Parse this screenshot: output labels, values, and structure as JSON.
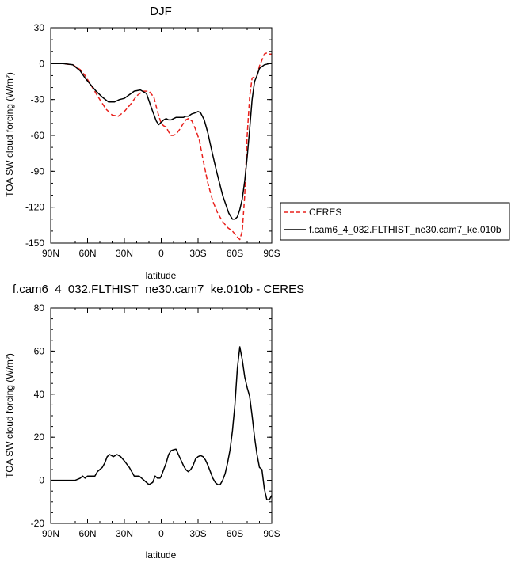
{
  "charts": [
    {
      "type": "line",
      "title": "DJF",
      "xlabel": "latitude",
      "ylabel": "TOA SW cloud forcing (W/m²)",
      "xlim": [
        -90,
        90
      ],
      "ylim": [
        -150,
        30
      ],
      "x_ticks": [
        -90,
        -60,
        -30,
        0,
        30,
        60,
        90
      ],
      "x_tick_labels": [
        "90N",
        "60N",
        "30N",
        "0",
        "30S",
        "60S",
        "90S"
      ],
      "y_ticks": [
        -150,
        -120,
        -90,
        -60,
        -30,
        0,
        30
      ],
      "y_tick_labels": [
        "-150",
        "-120",
        "-90",
        "-60",
        "-30",
        "0",
        "30"
      ],
      "legend": {
        "placement": "right",
        "entries": [
          {
            "label": "CERES",
            "color": "#e8201c",
            "dash": "dashed"
          },
          {
            "label": "f.cam6_4_032.FLTHIST_ne30.cam7_ke.010b",
            "color": "#000000",
            "dash": "solid"
          }
        ]
      },
      "series": [
        {
          "name": "CERES",
          "color": "#e8201c",
          "dash": "dashed",
          "x": [
            -90,
            -80,
            -72,
            -66,
            -62,
            -56,
            -50,
            -45,
            -40,
            -35,
            -30,
            -25,
            -20,
            -15,
            -10,
            -6,
            -3,
            -1,
            0,
            2,
            4,
            6,
            8,
            10,
            12,
            15,
            18,
            20,
            22,
            25,
            28,
            31,
            34,
            38,
            42,
            46,
            50,
            54,
            58,
            62,
            64,
            66,
            68,
            70,
            72,
            74,
            76,
            78,
            80,
            82,
            84,
            86,
            88,
            90
          ],
          "y": [
            0,
            0,
            -1,
            -5,
            -10,
            -20,
            -30,
            -38,
            -43,
            -44,
            -40,
            -34,
            -27,
            -23,
            -23,
            -28,
            -40,
            -47,
            -50,
            -52,
            -53,
            -57,
            -60,
            -60,
            -59,
            -55,
            -50,
            -47,
            -46,
            -48,
            -55,
            -64,
            -80,
            -100,
            -115,
            -125,
            -132,
            -137,
            -140,
            -145,
            -147,
            -140,
            -110,
            -60,
            -28,
            -12,
            -11,
            -10,
            -2,
            3,
            8,
            9,
            8,
            8
          ]
        },
        {
          "name": "f.cam6_4_032.FLTHIST_ne30.cam7_ke.010b",
          "color": "#000000",
          "dash": "solid",
          "x": [
            -90,
            -80,
            -72,
            -66,
            -62,
            -58,
            -53,
            -48,
            -43,
            -38,
            -34,
            -30,
            -26,
            -22,
            -17,
            -12,
            -8,
            -4,
            -2,
            0,
            2,
            4,
            6,
            8,
            10,
            12,
            15,
            18,
            20,
            22,
            25,
            28,
            30,
            32,
            35,
            38,
            41,
            45,
            50,
            55,
            58,
            60,
            62,
            64,
            66,
            68,
            70,
            72,
            74,
            76,
            78,
            80,
            84,
            88,
            90
          ],
          "y": [
            0,
            0,
            -1,
            -6,
            -12,
            -17,
            -23,
            -28,
            -32,
            -32,
            -30,
            -29,
            -26,
            -23,
            -22,
            -25,
            -37,
            -48,
            -51,
            -49,
            -47,
            -46,
            -47,
            -47,
            -46,
            -45,
            -45,
            -45,
            -44,
            -44,
            -42,
            -41,
            -40,
            -41,
            -47,
            -58,
            -72,
            -90,
            -110,
            -125,
            -130,
            -130,
            -128,
            -122,
            -113,
            -98,
            -78,
            -55,
            -30,
            -15,
            -10,
            -4,
            -1,
            0,
            0
          ]
        }
      ]
    },
    {
      "type": "line",
      "title": "f.cam6_4_032.FLTHIST_ne30.cam7_ke.010b - CERES",
      "xlabel": "latitude",
      "ylabel": "TOA SW cloud forcing (W/m²)",
      "xlim": [
        -90,
        90
      ],
      "ylim": [
        -20,
        80
      ],
      "x_ticks": [
        -90,
        -60,
        -30,
        0,
        30,
        60,
        90
      ],
      "x_tick_labels": [
        "90N",
        "60N",
        "30N",
        "0",
        "30S",
        "60S",
        "90S"
      ],
      "y_ticks": [
        -20,
        0,
        20,
        40,
        60,
        80
      ],
      "y_tick_labels": [
        "-20",
        "0",
        "20",
        "40",
        "60",
        "80"
      ],
      "series": [
        {
          "color": "#000000",
          "dash": "solid",
          "x": [
            -90,
            -80,
            -70,
            -66,
            -64,
            -62,
            -60,
            -57,
            -54,
            -52,
            -50,
            -48,
            -46,
            -44,
            -42,
            -39,
            -36,
            -33,
            -30,
            -26,
            -22,
            -18,
            -14,
            -10,
            -7,
            -5,
            -3,
            -1,
            0,
            2,
            4,
            6,
            8,
            10,
            12,
            14,
            16,
            18,
            20,
            22,
            24,
            26,
            28,
            30,
            32,
            34,
            36,
            38,
            40,
            42,
            44,
            46,
            48,
            50,
            52,
            54,
            56,
            58,
            60,
            62,
            64,
            66,
            68,
            70,
            72,
            74,
            76,
            78,
            80,
            82,
            84,
            86,
            88,
            90
          ],
          "y": [
            0,
            0,
            0,
            1,
            2,
            1,
            2,
            2,
            2,
            4,
            5,
            6,
            8,
            11,
            12,
            11,
            12,
            11,
            9,
            6,
            2,
            2,
            0,
            -2,
            -1,
            2,
            1,
            1,
            2,
            5,
            8,
            12,
            13.8,
            14.2,
            14.5,
            12,
            9.5,
            7,
            5,
            4,
            5,
            7,
            10,
            11,
            11.5,
            11,
            9.5,
            7,
            4,
            1,
            -1,
            -2,
            -2,
            0,
            3,
            8,
            14,
            23,
            35,
            52,
            62,
            56,
            48,
            43,
            39,
            30,
            20,
            12,
            6,
            5,
            -4,
            -9,
            -9,
            -7
          ]
        }
      ]
    }
  ]
}
